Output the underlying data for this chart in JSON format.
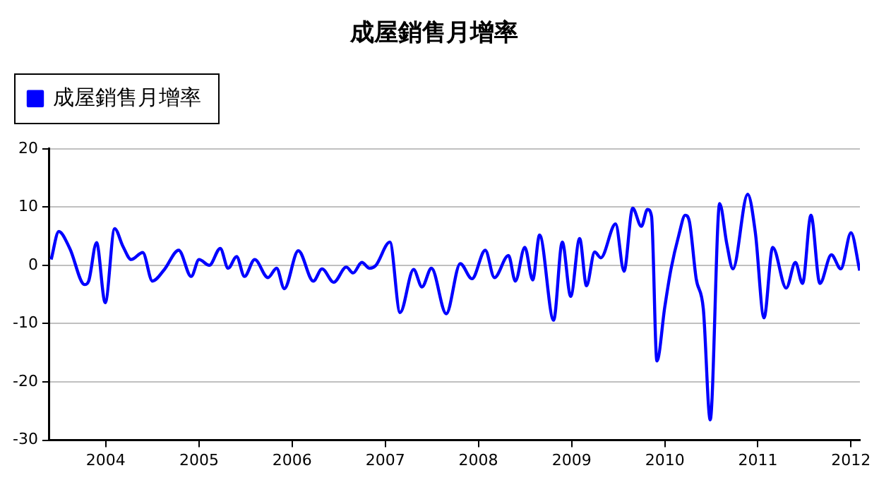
{
  "chart_data": {
    "type": "line",
    "title": "成屋銷售月增率",
    "legend": "top left",
    "grid": "y",
    "marker": "none",
    "line_style": "solid",
    "x": [
      "2003-06-01",
      "2003-07-01",
      "2003-08-13",
      "2003-10-10",
      "2003-10-26",
      "2003-11-26",
      "2003-12-30",
      "2004-02-05",
      "2004-03-08",
      "2004-04-10",
      "2004-05-25",
      "2004-07-02",
      "2004-08-18",
      "2004-10-13",
      "2004-12-01",
      "2005-01-01",
      "2005-02-10",
      "2005-03-25",
      "2005-04-25",
      "2005-05-28",
      "2005-06-28",
      "2005-08-07",
      "2005-09-28",
      "2005-11-01",
      "2005-12-01",
      "2006-01-25",
      "2006-03-25",
      "2006-04-28",
      "2006-06-13",
      "2006-08-01",
      "2006-08-28",
      "2006-10-01",
      "2006-11-01",
      "2006-11-25",
      "2007-01-19",
      "2007-02-28",
      "2007-04-22",
      "2007-05-25",
      "2007-07-01",
      "2007-08-28",
      "2007-10-22",
      "2007-12-07",
      "2008-01-28",
      "2008-03-04",
      "2008-04-28",
      "2008-05-25",
      "2008-07-01",
      "2008-08-01",
      "2008-08-28",
      "2008-10-22",
      "2008-11-25",
      "2008-12-28",
      "2009-02-01",
      "2009-02-28",
      "2009-04-01",
      "2009-04-25",
      "2009-06-22",
      "2009-07-25",
      "2009-08-28",
      "2009-10-01",
      "2009-10-25",
      "2009-11-10",
      "2009-12-01",
      "2010-01-01",
      "2010-01-25",
      "2010-02-25",
      "2010-03-22",
      "2010-04-07",
      "2010-05-04",
      "2010-06-01",
      "2010-06-28",
      "2010-08-04",
      "2010-09-01",
      "2010-09-25",
      "2010-11-22",
      "2010-12-22",
      "2011-01-25",
      "2011-02-28",
      "2011-04-22",
      "2011-05-28",
      "2011-06-25",
      "2011-07-28",
      "2011-09-01",
      "2011-10-16",
      "2011-11-22",
      "2012-01-01",
      "2012-02-04"
    ],
    "series": [
      {
        "name": "成屋銷售月增率",
        "color": "#0000ff",
        "values": [
          1,
          5.8,
          2.9,
          -3.3,
          -2.7,
          3.9,
          -6.4,
          6.3,
          3.3,
          1,
          2.2,
          -2.7,
          -0.7,
          2.6,
          -1.9,
          1,
          0,
          2.9,
          -0.5,
          1.5,
          -1.9,
          1,
          -2.1,
          -0.5,
          -4,
          2.5,
          -2.7,
          -0.6,
          -2.9,
          -0.3,
          -1.3,
          0.5,
          -0.5,
          0,
          4,
          -8.1,
          -0.7,
          -3.7,
          -0.5,
          -8.3,
          0.3,
          -2.3,
          2.6,
          -2.1,
          1.7,
          -2.7,
          3.1,
          -2.5,
          5.2,
          -9.4,
          4,
          -5.3,
          4.6,
          -3.5,
          2.3,
          1.3,
          7.1,
          -1,
          9.8,
          6.7,
          9.6,
          8.4,
          -16.4,
          -7.1,
          -0.7,
          5.2,
          8.6,
          7.6,
          -2.3,
          -7.5,
          -26.5,
          10.6,
          3.7,
          -0.6,
          12.2,
          5.6,
          -9,
          3.1,
          -3.9,
          0.5,
          -3.1,
          8.6,
          -3.1,
          1.8,
          -0.6,
          5.6,
          -0.9
        ]
      }
    ],
    "xlim": [
      "2003-05-25",
      "2012-02-05"
    ],
    "xticks": [
      {
        "value": "2004-01-01",
        "label": "2004"
      },
      {
        "value": "2005-01-01",
        "label": "2005"
      },
      {
        "value": "2006-01-01",
        "label": "2006"
      },
      {
        "value": "2007-01-01",
        "label": "2007"
      },
      {
        "value": "2008-01-01",
        "label": "2008"
      },
      {
        "value": "2009-01-01",
        "label": "2009"
      },
      {
        "value": "2010-01-01",
        "label": "2010"
      },
      {
        "value": "2011-01-01",
        "label": "2011"
      },
      {
        "value": "2012-01-01",
        "label": "2012"
      }
    ],
    "ylim": [
      -30,
      20
    ],
    "yticks": [
      -30,
      -20,
      -10,
      0,
      10,
      20
    ]
  }
}
